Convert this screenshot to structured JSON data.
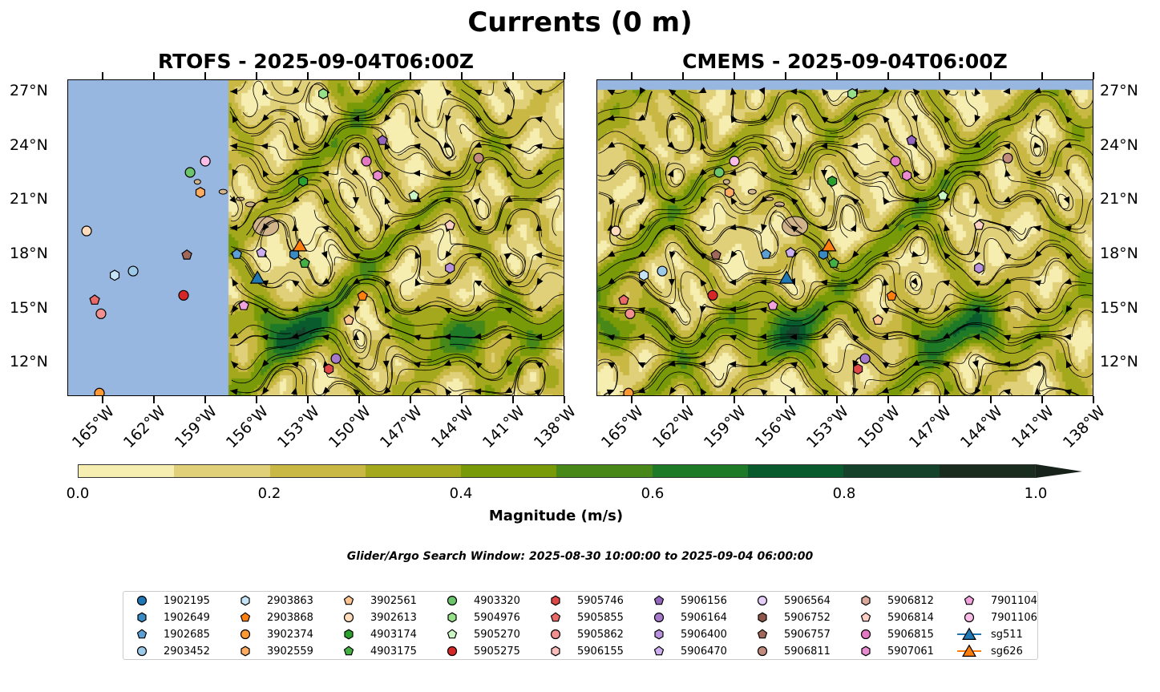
{
  "title": "Currents (0 m)",
  "panels": [
    {
      "title": "RTOFS - 2025-09-04T06:00Z",
      "model": "RTOFS",
      "phase": 0
    },
    {
      "title": "CMEMS - 2025-09-04T06:00Z",
      "model": "CMEMS",
      "phase": 1
    }
  ],
  "map": {
    "lon_range": [
      -167.06,
      -138.0
    ],
    "lat_range": [
      10.15,
      27.67
    ],
    "lon_ticks": [
      {
        "v": -165,
        "label": "165°W"
      },
      {
        "v": -162,
        "label": "162°W"
      },
      {
        "v": -159,
        "label": "159°W"
      },
      {
        "v": -156,
        "label": "156°W"
      },
      {
        "v": -153,
        "label": "153°W"
      },
      {
        "v": -150,
        "label": "150°W"
      },
      {
        "v": -147,
        "label": "147°W"
      },
      {
        "v": -144,
        "label": "144°W"
      },
      {
        "v": -141,
        "label": "141°W"
      },
      {
        "v": -138,
        "label": "138°W"
      }
    ],
    "lat_ticks": [
      {
        "v": 27,
        "label": "27°N"
      },
      {
        "v": 24,
        "label": "24°N"
      },
      {
        "v": 21,
        "label": "21°N"
      },
      {
        "v": 18,
        "label": "18°N"
      },
      {
        "v": 15,
        "label": "15°N"
      },
      {
        "v": 12,
        "label": "12°N"
      }
    ],
    "ocean_color": "#97b6e0",
    "land_color": "#d2b48c"
  },
  "colorbar": {
    "label": "Magnitude (m/s)",
    "range": [
      0.0,
      1.0
    ],
    "ticks": [
      "0.0",
      "0.2",
      "0.4",
      "0.6",
      "0.8",
      "1.0"
    ],
    "colors": [
      "#f6edb0",
      "#e1d07a",
      "#c9b944",
      "#a4a81c",
      "#789a08",
      "#478818",
      "#1f7a28",
      "#095b2e",
      "#15422a",
      "#1a2c1e"
    ],
    "extend_color": "#17231a"
  },
  "search_window": "Glider/Argo Search Window: 2025-08-30 10:00:00 to 2025-09-04 06:00:00",
  "legend": [
    {
      "label": "1902195",
      "shape": "circle",
      "color": "#1f77b4"
    },
    {
      "label": "1902649",
      "shape": "hexagon",
      "color": "#3a8ac4",
      "lon": -153.84,
      "lat": 18.04
    },
    {
      "label": "1902685",
      "shape": "pentagon",
      "color": "#5b9fd4",
      "lon": -157.2,
      "lat": 18.04
    },
    {
      "label": "2903452",
      "shape": "circle",
      "color": "#9ecae9",
      "lon": -163.26,
      "lat": 17.11
    },
    {
      "label": "2903863",
      "shape": "hexagon",
      "color": "#c6e4f7",
      "lon": -164.34,
      "lat": 16.88
    },
    {
      "label": "2903868",
      "shape": "pentagon",
      "color": "#ff7f0e",
      "lon": -149.85,
      "lat": 15.73
    },
    {
      "label": "3902374",
      "shape": "circle",
      "color": "#ff9933",
      "lon": -165.23,
      "lat": 10.36
    },
    {
      "label": "3902559",
      "shape": "hexagon",
      "color": "#ffac60",
      "lon": -159.33,
      "lat": 21.46
    },
    {
      "label": "3902561",
      "shape": "pentagon",
      "color": "#ffc490",
      "lon": -150.65,
      "lat": 14.4
    },
    {
      "label": "3902613",
      "shape": "circle",
      "color": "#ffdcbc",
      "lon": -165.98,
      "lat": 19.33
    },
    {
      "label": "4903174",
      "shape": "hexagon",
      "color": "#2ca02c",
      "lon": -153.32,
      "lat": 22.08
    },
    {
      "label": "4903175",
      "shape": "pentagon",
      "color": "#44b044",
      "lon": -153.23,
      "lat": 17.55
    },
    {
      "label": "4903320",
      "shape": "circle",
      "color": "#6cc46c",
      "lon": -159.93,
      "lat": 22.57
    },
    {
      "label": "5904976",
      "shape": "hexagon",
      "color": "#98df8a",
      "lon": -152.15,
      "lat": 26.92
    },
    {
      "label": "5905270",
      "shape": "pentagon",
      "color": "#cbf5c4",
      "lon": -146.85,
      "lat": 21.28
    },
    {
      "label": "5905275",
      "shape": "circle",
      "color": "#d62728",
      "lon": -160.31,
      "lat": 15.77
    },
    {
      "label": "5905746",
      "shape": "hexagon",
      "color": "#e04848",
      "lon": -151.82,
      "lat": 11.69
    },
    {
      "label": "5905855",
      "shape": "pentagon",
      "color": "#ea6a6a",
      "lon": -165.51,
      "lat": 15.51
    },
    {
      "label": "5905862",
      "shape": "circle",
      "color": "#f29090",
      "lon": -165.14,
      "lat": 14.75
    },
    {
      "label": "5906155",
      "shape": "hexagon",
      "color": "#fbbcbc"
    },
    {
      "label": "5906156",
      "shape": "pentagon",
      "color": "#9467bd",
      "lon": -148.68,
      "lat": 24.34
    },
    {
      "label": "5906164",
      "shape": "circle",
      "color": "#a57acb",
      "lon": -151.4,
      "lat": 12.27
    },
    {
      "label": "5906400",
      "shape": "hexagon",
      "color": "#b892dc",
      "lon": -144.74,
      "lat": 17.28
    },
    {
      "label": "5906470",
      "shape": "pentagon",
      "color": "#ccafee",
      "lon": -155.76,
      "lat": 18.13
    },
    {
      "label": "5906564",
      "shape": "circle",
      "color": "#e3cef8"
    },
    {
      "label": "5906752",
      "shape": "hexagon",
      "color": "#8c564b"
    },
    {
      "label": "5906757",
      "shape": "pentagon",
      "color": "#a0675b",
      "lon": -160.12,
      "lat": 18.0
    },
    {
      "label": "5906811",
      "shape": "circle",
      "color": "#c08a7c",
      "lon": -143.06,
      "lat": 23.36
    },
    {
      "label": "5906812",
      "shape": "hexagon",
      "color": "#daa89c"
    },
    {
      "label": "5906814",
      "shape": "pentagon",
      "color": "#fdd0c6",
      "lon": -144.74,
      "lat": 19.64
    },
    {
      "label": "5906815",
      "shape": "circle",
      "color": "#e377c2",
      "lon": -149.62,
      "lat": 23.19
    },
    {
      "label": "5907061",
      "shape": "hexagon",
      "color": "#e98bcf",
      "lon": -148.96,
      "lat": 22.39
    },
    {
      "label": "7901104",
      "shape": "pentagon",
      "color": "#f2a2dc",
      "lon": -156.79,
      "lat": 15.2
    },
    {
      "label": "7901106",
      "shape": "circle",
      "color": "#f9bde8",
      "lon": -159.04,
      "lat": 23.19
    },
    {
      "label": "sg511",
      "shape": "triangle",
      "color": "#1f77b4",
      "line": true,
      "lon": -155.99,
      "lat": 16.75
    },
    {
      "label": "sg626",
      "shape": "triangle",
      "color": "#ff7f0e",
      "line": true,
      "lon": -153.51,
      "lat": 18.53
    }
  ]
}
